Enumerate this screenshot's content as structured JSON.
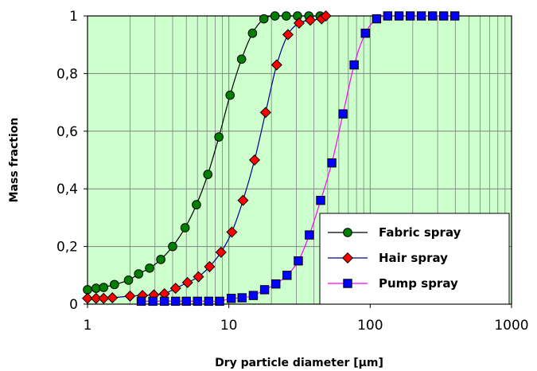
{
  "chart_data": {
    "type": "scatter",
    "xlabel": "Dry particle diameter [µm]",
    "ylabel": "Mass fraction",
    "xscale": "log",
    "xlim": [
      1,
      1000
    ],
    "ylim": [
      0,
      1
    ],
    "x_ticks": [
      1,
      10,
      100,
      1000
    ],
    "x_tick_labels": [
      "1",
      "10",
      "100",
      "1000"
    ],
    "y_ticks": [
      0,
      0.2,
      0.4,
      0.6,
      0.8,
      1
    ],
    "y_tick_labels": [
      "0",
      "0,2",
      "0,4",
      "0,6",
      "0,8",
      "1"
    ],
    "grid": true,
    "legend_position": "lower-right",
    "plot_background": "#ccffcc",
    "series": [
      {
        "name": "Fabric spray",
        "marker": "circle",
        "marker_color": "#008000",
        "line_color": "#000000",
        "x": [
          1.0,
          1.15,
          1.3,
          1.55,
          1.95,
          2.3,
          2.75,
          3.3,
          4.0,
          4.9,
          5.9,
          7.1,
          8.5,
          10.2,
          12.3,
          14.7,
          17.7,
          21.2,
          25.5,
          30.6,
          36.8,
          44.2
        ],
        "y": [
          0.05,
          0.055,
          0.058,
          0.068,
          0.083,
          0.105,
          0.125,
          0.155,
          0.2,
          0.265,
          0.345,
          0.45,
          0.58,
          0.725,
          0.85,
          0.94,
          0.99,
          1.0,
          1.0,
          1.0,
          1.0,
          1.0
        ]
      },
      {
        "name": "Hair spray",
        "marker": "diamond",
        "marker_color": "#ff0000",
        "line_color": "#00008b",
        "x": [
          1.0,
          1.15,
          1.3,
          1.5,
          2.0,
          2.45,
          2.95,
          3.5,
          4.2,
          5.1,
          6.1,
          7.3,
          8.8,
          10.5,
          12.6,
          15.2,
          18.2,
          21.8,
          26.2,
          31.4,
          37.7,
          45.3,
          48.6
        ],
        "y": [
          0.02,
          0.02,
          0.02,
          0.022,
          0.028,
          0.03,
          0.032,
          0.036,
          0.055,
          0.075,
          0.095,
          0.13,
          0.18,
          0.25,
          0.36,
          0.5,
          0.665,
          0.83,
          0.935,
          0.975,
          0.985,
          0.99,
          1.0
        ]
      },
      {
        "name": "Pump spray",
        "marker": "square",
        "marker_color": "#0000ff",
        "line_color": "#ff00ff",
        "x": [
          2.4,
          2.9,
          3.5,
          4.2,
          5.0,
          6.0,
          7.2,
          8.6,
          10.4,
          12.4,
          14.9,
          17.9,
          21.5,
          25.8,
          31.0,
          37.1,
          44.6,
          53.5,
          64.2,
          77.0,
          92.4,
          111,
          133,
          160,
          192,
          230,
          276,
          331,
          397
        ],
        "y": [
          0.01,
          0.01,
          0.01,
          0.01,
          0.01,
          0.01,
          0.01,
          0.01,
          0.02,
          0.022,
          0.03,
          0.05,
          0.07,
          0.1,
          0.15,
          0.24,
          0.36,
          0.49,
          0.66,
          0.83,
          0.94,
          0.99,
          1.0,
          1.0,
          1.0,
          1.0,
          1.0,
          1.0,
          1.0
        ]
      }
    ]
  }
}
